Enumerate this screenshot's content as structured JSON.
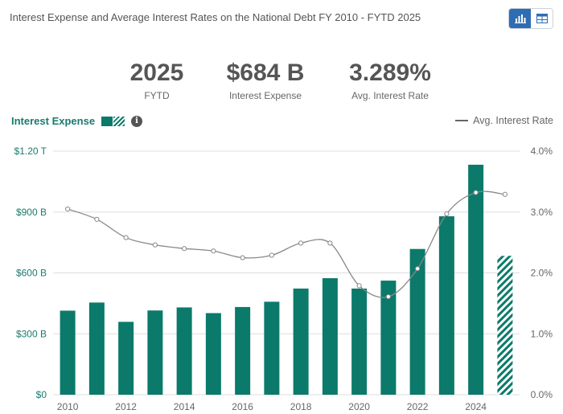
{
  "header": {
    "title": "Interest Expense and Average Interest Rates on the National Debt FY 2010 - FYTD 2025"
  },
  "view_toggle": {
    "active": "chart",
    "icons": [
      "bar-chart-icon",
      "table-icon"
    ]
  },
  "stats": [
    {
      "value": "2025",
      "label": "FYTD"
    },
    {
      "value": "$684 B",
      "label": "Interest Expense"
    },
    {
      "value": "3.289%",
      "label": "Avg. Interest Rate"
    }
  ],
  "legend": {
    "bar_label": "Interest Expense",
    "line_label": "Avg. Interest Rate"
  },
  "colors": {
    "bar": "#0b7a6a",
    "line": "#888888",
    "grid": "#dddddd",
    "line_point": "#ffffff"
  },
  "chart_data": {
    "type": "bar",
    "categories": [
      "2010",
      "2011",
      "2012",
      "2013",
      "2014",
      "2015",
      "2016",
      "2017",
      "2018",
      "2019",
      "2020",
      "2021",
      "2022",
      "2023",
      "2024",
      "2025"
    ],
    "series": [
      {
        "name": "Interest Expense",
        "type": "bar",
        "axis": "left",
        "unit": "billions USD",
        "values": [
          414,
          454,
          359,
          415,
          430,
          402,
          432,
          458,
          523,
          574,
          523,
          562,
          718,
          879,
          1133,
          684
        ],
        "partial_last": true
      },
      {
        "name": "Avg. Interest Rate",
        "type": "line",
        "axis": "right",
        "unit": "percent",
        "values": [
          3.05,
          2.88,
          2.58,
          2.46,
          2.4,
          2.36,
          2.25,
          2.29,
          2.49,
          2.49,
          1.79,
          1.61,
          2.07,
          2.97,
          3.32,
          3.29
        ]
      }
    ],
    "y_left": {
      "range": [
        0,
        1200
      ],
      "ticks": [
        0,
        300,
        600,
        900,
        1200
      ],
      "tick_labels": [
        "$0",
        "$300 B",
        "$600 B",
        "$900 B",
        "$1.20 T"
      ]
    },
    "y_right": {
      "range": [
        0,
        4
      ],
      "ticks": [
        0,
        1,
        2,
        3,
        4
      ],
      "tick_labels": [
        "0.0%",
        "1.0%",
        "2.0%",
        "3.0%",
        "4.0%"
      ]
    },
    "x_tick_labels": [
      "2010",
      "2012",
      "2014",
      "2016",
      "2018",
      "2020",
      "2022",
      "2024"
    ],
    "grid": true
  }
}
